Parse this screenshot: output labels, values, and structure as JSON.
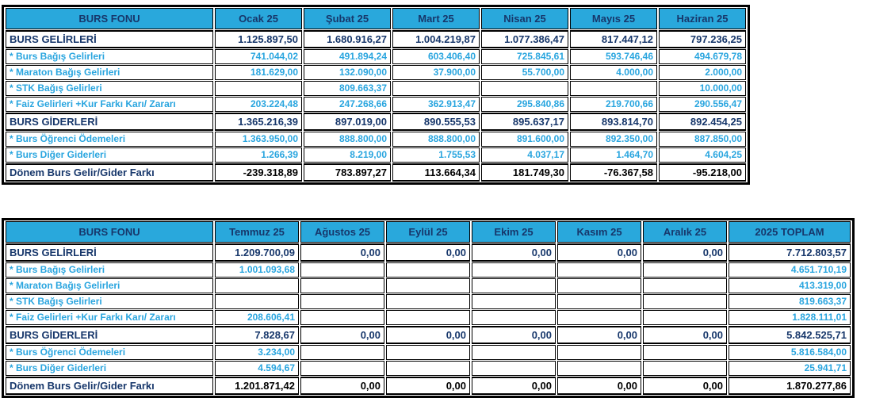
{
  "colors": {
    "header_bg": "#29a8dc",
    "navy_text": "#17376b",
    "cyan_text": "#29a5df",
    "black_text": "#000000",
    "border": "#000000"
  },
  "table1": {
    "title_header": "BURS FONU",
    "columns": [
      "Ocak 25",
      "Şubat 25",
      "Mart 25",
      "Nisan 25",
      "Mayıs 25",
      "Haziran 25"
    ],
    "rows": [
      {
        "label": "BURS GELİRLERİ",
        "style": "section",
        "values": [
          "1.125.897,50",
          "1.680.916,27",
          "1.004.219,87",
          "1.077.386,47",
          "817.447,12",
          "797.236,25"
        ]
      },
      {
        "label": "* Burs Bağış Gelirleri",
        "style": "sub",
        "values": [
          "741.044,02",
          "491.894,24",
          "603.406,40",
          "725.845,61",
          "593.746,46",
          "494.679,78"
        ]
      },
      {
        "label": "* Maraton Bağış Gelirleri",
        "style": "sub",
        "values": [
          "181.629,00",
          "132.090,00",
          "37.900,00",
          "55.700,00",
          "4.000,00",
          "2.000,00"
        ]
      },
      {
        "label": "* STK Bağış Gelirleri",
        "style": "sub",
        "values": [
          "",
          "809.663,37",
          "",
          "",
          "",
          "10.000,00"
        ]
      },
      {
        "label": "* Faiz Gelirleri +Kur Farkı Karı/ Zararı",
        "style": "sub",
        "values": [
          "203.224,48",
          "247.268,66",
          "362.913,47",
          "295.840,86",
          "219.700,66",
          "290.556,47"
        ]
      },
      {
        "label": "BURS GİDERLERİ",
        "style": "section",
        "values": [
          "1.365.216,39",
          "897.019,00",
          "890.555,53",
          "895.637,17",
          "893.814,70",
          "892.454,25"
        ]
      },
      {
        "label": "* Burs Öğrenci Ödemeleri",
        "style": "sub",
        "values": [
          "1.363.950,00",
          "888.800,00",
          "888.800,00",
          "891.600,00",
          "892.350,00",
          "887.850,00"
        ]
      },
      {
        "label": "* Burs Diğer Giderleri",
        "style": "sub",
        "values": [
          "1.266,39",
          "8.219,00",
          "1.755,53",
          "4.037,17",
          "1.464,70",
          "4.604,25"
        ]
      },
      {
        "label": "Dönem Burs Gelir/Gider Farkı",
        "style": "total",
        "values": [
          "-239.318,89",
          "783.897,27",
          "113.664,34",
          "181.749,30",
          "-76.367,58",
          "-95.218,00"
        ]
      }
    ]
  },
  "table2": {
    "title_header": "BURS FONU",
    "columns": [
      "Temmuz 25",
      "Ağustos 25",
      "Eylül 25",
      "Ekim 25",
      "Kasım 25",
      "Aralık 25",
      "2025 TOPLAM"
    ],
    "rows": [
      {
        "label": "BURS GELİRLERİ",
        "style": "section",
        "values": [
          "1.209.700,09",
          "0,00",
          "0,00",
          "0,00",
          "0,00",
          "0,00",
          "7.712.803,57"
        ]
      },
      {
        "label": "* Burs Bağış Gelirleri",
        "style": "sub",
        "values": [
          "1.001.093,68",
          "",
          "",
          "",
          "",
          "",
          "4.651.710,19"
        ]
      },
      {
        "label": "* Maraton Bağış Gelirleri",
        "style": "sub",
        "values": [
          "",
          "",
          "",
          "",
          "",
          "",
          "413.319,00"
        ]
      },
      {
        "label": "* STK Bağış Gelirleri",
        "style": "sub",
        "values": [
          "",
          "",
          "",
          "",
          "",
          "",
          "819.663,37"
        ]
      },
      {
        "label": "* Faiz Gelirleri +Kur Farkı Karı/ Zararı",
        "style": "sub",
        "values": [
          "208.606,41",
          "",
          "",
          "",
          "",
          "",
          "1.828.111,01"
        ]
      },
      {
        "label": "BURS GİDERLERİ",
        "style": "section",
        "values": [
          "7.828,67",
          "0,00",
          "0,00",
          "0,00",
          "0,00",
          "0,00",
          "5.842.525,71"
        ]
      },
      {
        "label": "* Burs Öğrenci Ödemeleri",
        "style": "sub",
        "values": [
          "3.234,00",
          "",
          "",
          "",
          "",
          "",
          "5.816.584,00"
        ]
      },
      {
        "label": "* Burs Diğer Giderleri",
        "style": "sub",
        "values": [
          "4.594,67",
          "",
          "",
          "",
          "",
          "",
          "25.941,71"
        ]
      },
      {
        "label": "Dönem Burs Gelir/Gider Farkı",
        "style": "total",
        "values": [
          "1.201.871,42",
          "0,00",
          "0,00",
          "0,00",
          "0,00",
          "0,00",
          "1.870.277,86"
        ]
      }
    ]
  }
}
